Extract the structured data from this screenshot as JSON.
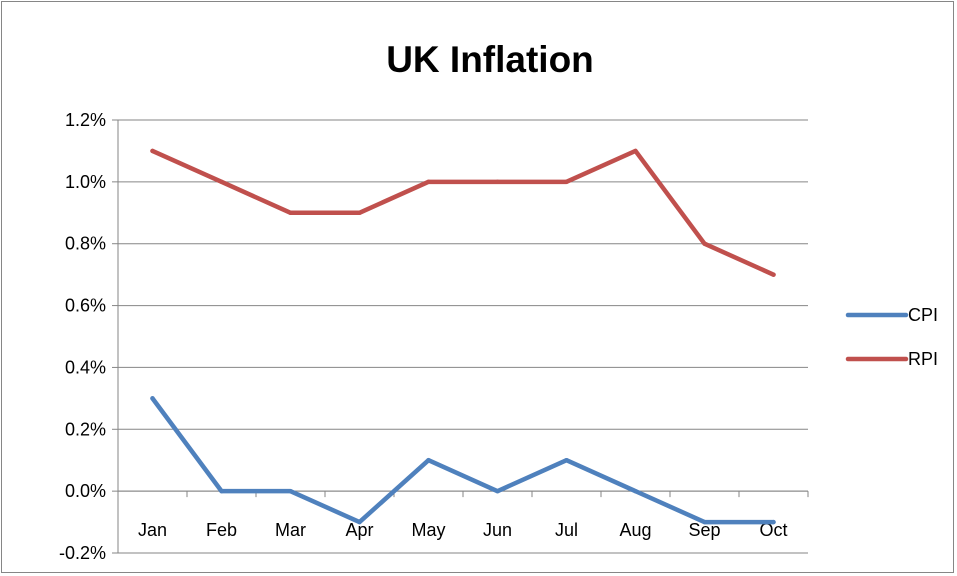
{
  "chart_data": {
    "type": "line",
    "title": "UK Inflation",
    "xlabel": "",
    "ylabel": "",
    "categories": [
      "Jan",
      "Feb",
      "Mar",
      "Apr",
      "May",
      "Jun",
      "Jul",
      "Aug",
      "Sep",
      "Oct"
    ],
    "ylim": [
      -0.2,
      1.2
    ],
    "yticks": [
      {
        "value": -0.2,
        "label": "-0.2%"
      },
      {
        "value": 0.0,
        "label": "0.0%"
      },
      {
        "value": 0.2,
        "label": "0.2%"
      },
      {
        "value": 0.4,
        "label": "0.4%"
      },
      {
        "value": 0.6,
        "label": "0.6%"
      },
      {
        "value": 0.8,
        "label": "0.8%"
      },
      {
        "value": 1.0,
        "label": "1.0%"
      },
      {
        "value": 1.2,
        "label": "1.2%"
      }
    ],
    "grid": true,
    "legend_position": "right",
    "series": [
      {
        "name": "CPI",
        "color": "#4F81BD",
        "values": [
          0.3,
          0.0,
          0.0,
          -0.1,
          0.1,
          0.0,
          0.1,
          0.0,
          -0.1,
          -0.1
        ]
      },
      {
        "name": "RPI",
        "color": "#C0504D",
        "values": [
          1.1,
          1.0,
          0.9,
          0.9,
          1.0,
          1.0,
          1.0,
          1.1,
          0.8,
          0.7
        ]
      }
    ]
  }
}
